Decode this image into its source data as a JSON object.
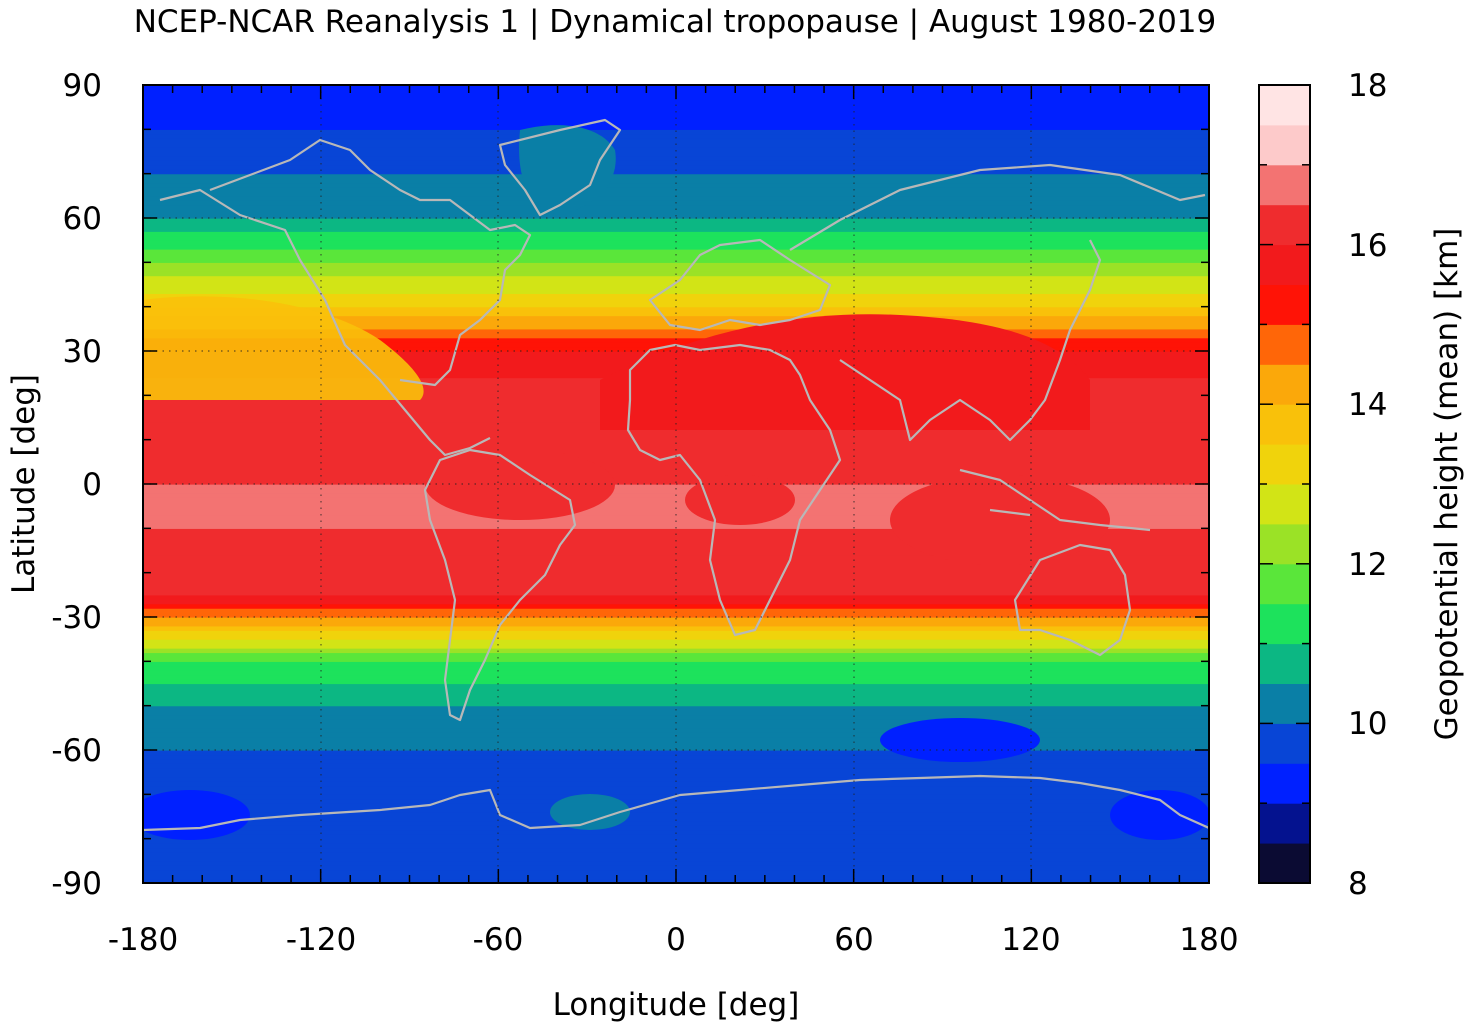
{
  "title": "NCEP-NCAR Reanalysis 1 | Dynamical tropopause | August 1980-2019",
  "chart_data": {
    "type": "heatmap",
    "title": "NCEP-NCAR Reanalysis 1 | Dynamical tropopause | August 1980-2019",
    "xlabel": "Longitude [deg]",
    "ylabel": "Latitude [deg]",
    "xlim": [
      -180,
      180
    ],
    "ylim": [
      -90,
      90
    ],
    "x_ticks": [
      "-180",
      "-120",
      "-60",
      "0",
      "60",
      "120",
      "180"
    ],
    "y_ticks": [
      "90",
      "60",
      "30",
      "0",
      "-30",
      "-60",
      "-90"
    ],
    "grid": true,
    "colorbar": {
      "label": "Geopotential height (mean) [km]",
      "range": [
        8,
        18
      ],
      "step": 0.5,
      "ticks": [
        "18",
        "16",
        "14",
        "12",
        "10",
        "8"
      ],
      "colors": [
        "#0b0b33",
        "#04128f",
        "#0020ff",
        "#0845d6",
        "#0a7fa6",
        "#0cb783",
        "#1de25c",
        "#5ae63a",
        "#9be226",
        "#d2e416",
        "#f0d30c",
        "#f9c10a",
        "#fba80a",
        "#ff6608",
        "#ff1306",
        "#f21a1c",
        "#ef2c2e",
        "#f37372",
        "#fdcaca",
        "#ffe4e4"
      ]
    },
    "zonal_profile": {
      "latitudes": [
        -90,
        -80,
        -70,
        -60,
        -50,
        -40,
        -30,
        -25,
        -20,
        -10,
        0,
        10,
        20,
        30,
        40,
        50,
        60,
        70,
        80,
        90
      ],
      "height_km": [
        9.5,
        9.6,
        9.7,
        10.0,
        10.5,
        11.5,
        14.5,
        16.0,
        16.4,
        16.5,
        16.5,
        16.4,
        16.3,
        15.5,
        13.5,
        12.0,
        10.5,
        10.0,
        9.5,
        9.0
      ]
    }
  }
}
